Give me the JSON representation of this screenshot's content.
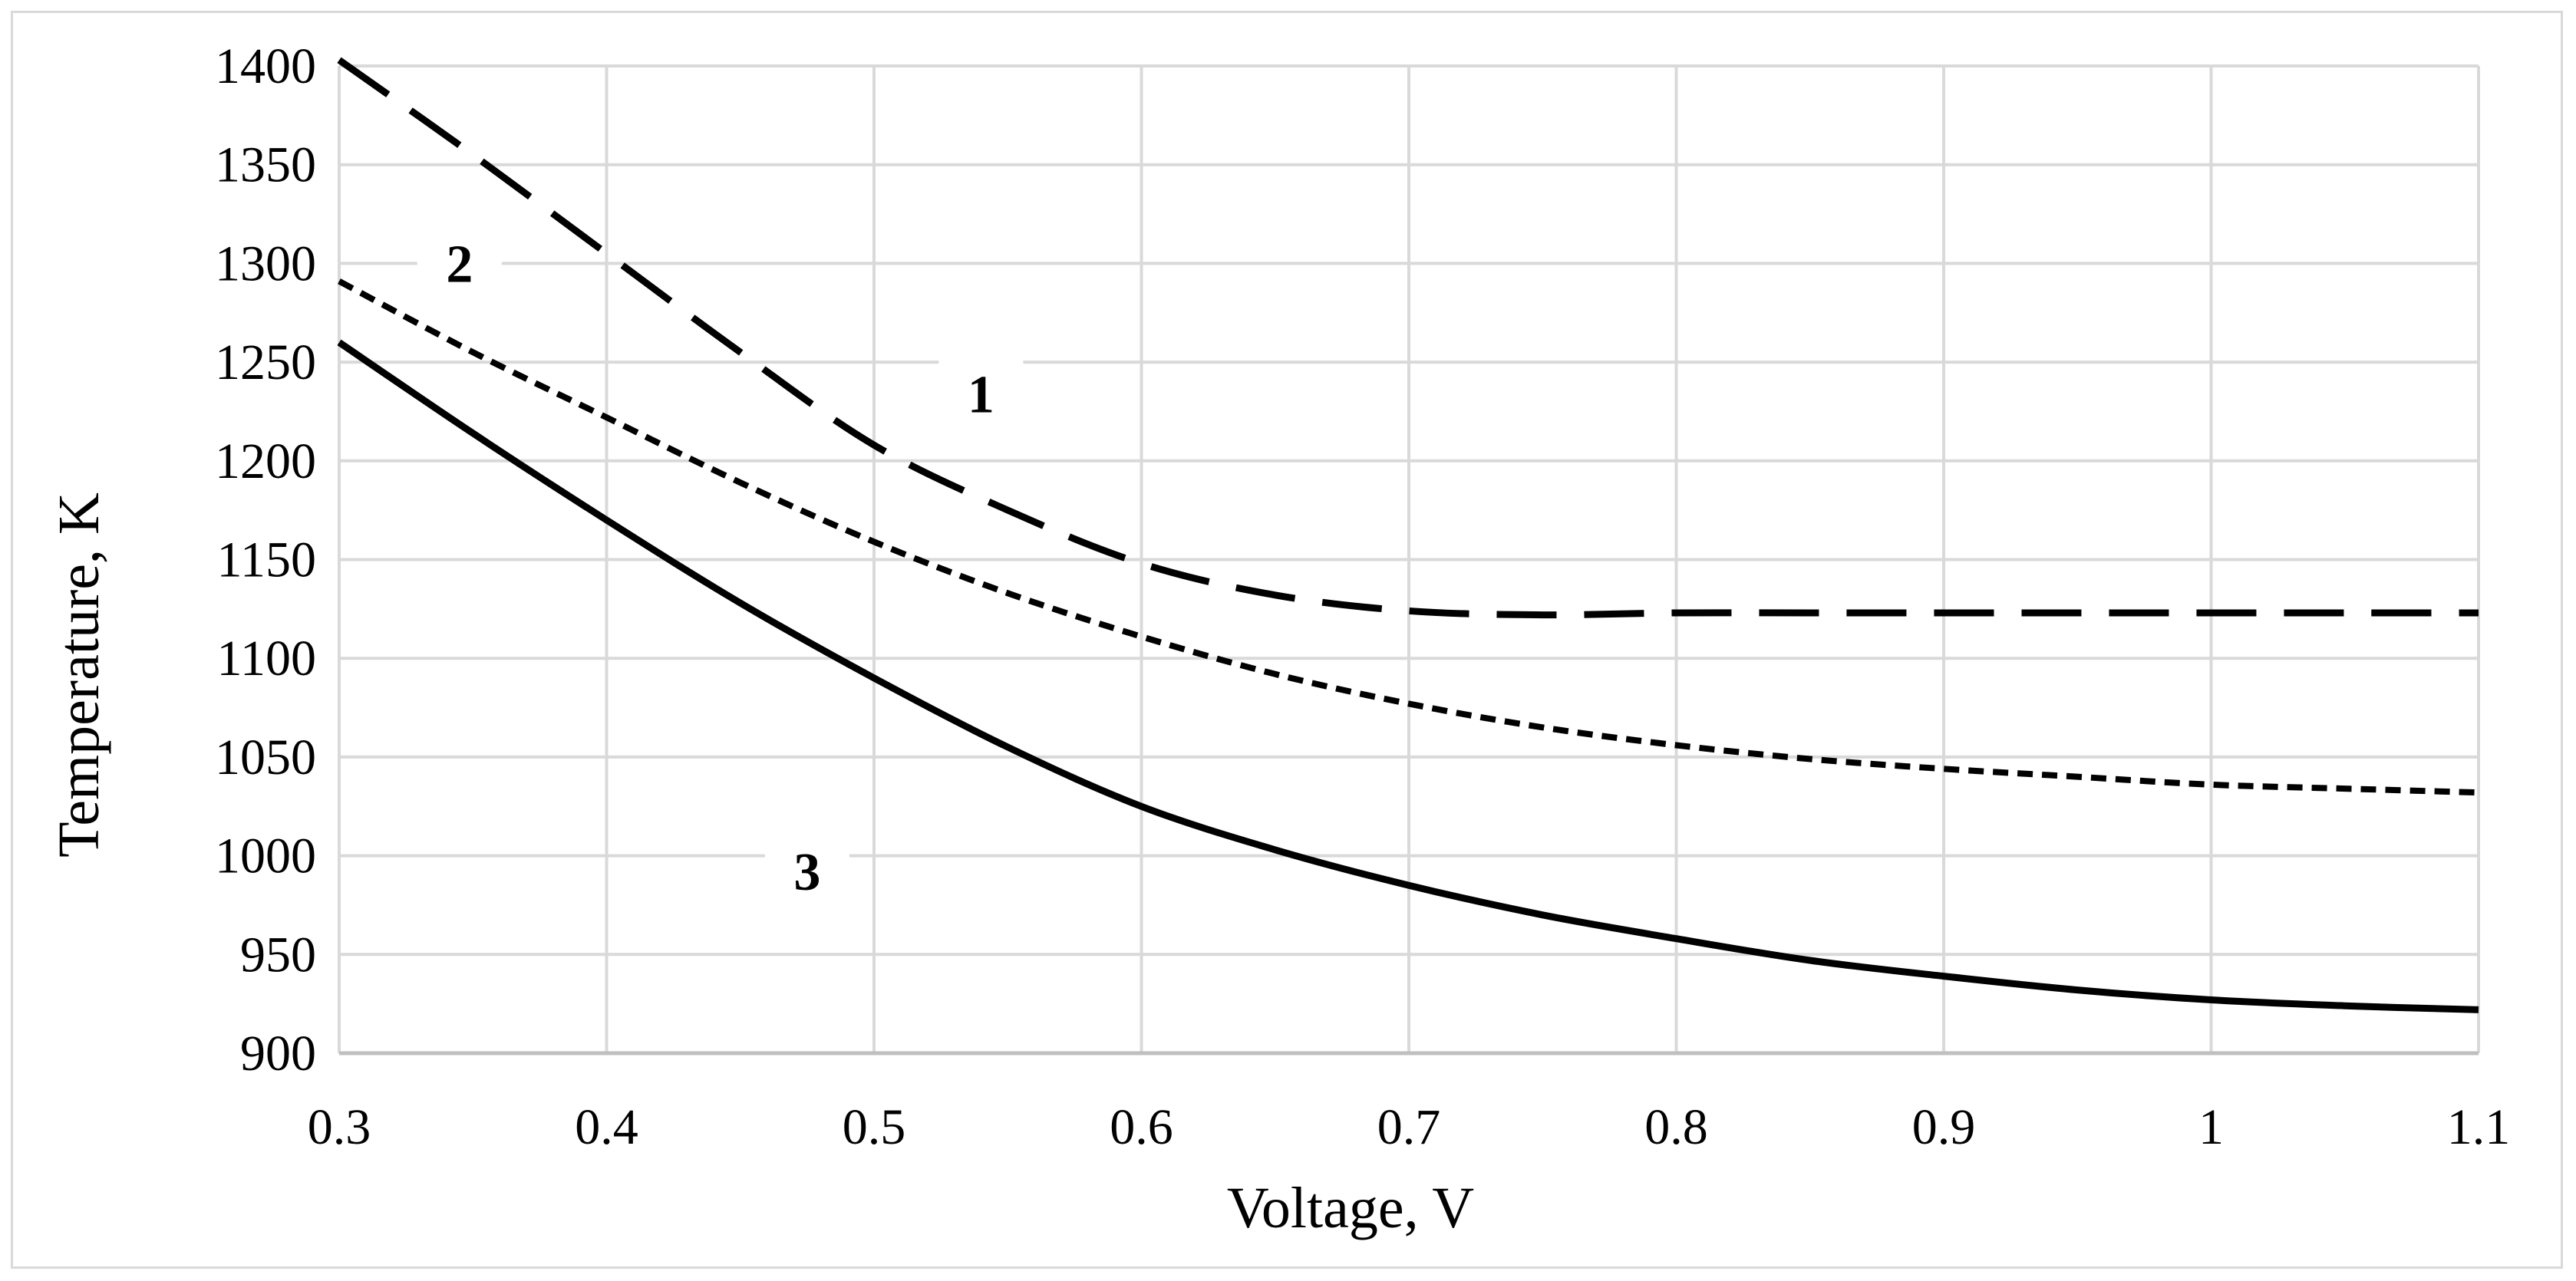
{
  "chart_data": {
    "type": "line",
    "title": "",
    "xlabel": "Voltage, V",
    "ylabel": "Temperature, K",
    "xlim": [
      0.3,
      1.1
    ],
    "ylim": [
      900,
      1400
    ],
    "x_ticks": [
      0.3,
      0.4,
      0.5,
      0.6,
      0.7,
      0.8,
      0.9,
      1.0,
      1.1
    ],
    "x_tick_labels": [
      "0.3",
      "0.4",
      "0.5",
      "0.6",
      "0.7",
      "0.8",
      "0.9",
      "1",
      "1.1"
    ],
    "y_ticks": [
      900,
      950,
      1000,
      1050,
      1100,
      1150,
      1200,
      1250,
      1300,
      1350,
      1400
    ],
    "y_tick_labels": [
      "900",
      "950",
      "1000",
      "1050",
      "1100",
      "1150",
      "1200",
      "1250",
      "1300",
      "1350",
      "1400"
    ],
    "grid": true,
    "legend": "none",
    "series": [
      {
        "name": "1",
        "style": "long-dash",
        "label_at": [
          0.54,
          1234
        ],
        "x": [
          0.3,
          0.35,
          0.4,
          0.45,
          0.5,
          0.55,
          0.6,
          0.65,
          0.7,
          0.75,
          0.8,
          0.85,
          0.9,
          0.95,
          1.0,
          1.05,
          1.1
        ],
        "y": [
          1403,
          1355,
          1305,
          1255,
          1208,
          1175,
          1148,
          1132,
          1124,
          1122,
          1123,
          1123,
          1123,
          1123,
          1123,
          1123,
          1123
        ]
      },
      {
        "name": "2",
        "style": "short-dash",
        "label_at": [
          0.345,
          1300
        ],
        "x": [
          0.3,
          0.35,
          0.4,
          0.45,
          0.5,
          0.55,
          0.6,
          0.65,
          0.7,
          0.75,
          0.8,
          0.85,
          0.9,
          0.95,
          1.0,
          1.05,
          1.1
        ],
        "y": [
          1291,
          1255,
          1222,
          1189,
          1159,
          1133,
          1111,
          1092,
          1077,
          1065,
          1056,
          1049,
          1044,
          1040,
          1036,
          1034,
          1032
        ]
      },
      {
        "name": "3",
        "style": "solid",
        "label_at": [
          0.475,
          992
        ],
        "x": [
          0.3,
          0.35,
          0.4,
          0.45,
          0.5,
          0.55,
          0.6,
          0.65,
          0.7,
          0.75,
          0.8,
          0.85,
          0.9,
          0.95,
          1.0,
          1.05,
          1.1
        ],
        "y": [
          1260,
          1214,
          1170,
          1128,
          1090,
          1055,
          1025,
          1003,
          985,
          970,
          958,
          947,
          939,
          932,
          927,
          924,
          922
        ]
      }
    ]
  }
}
